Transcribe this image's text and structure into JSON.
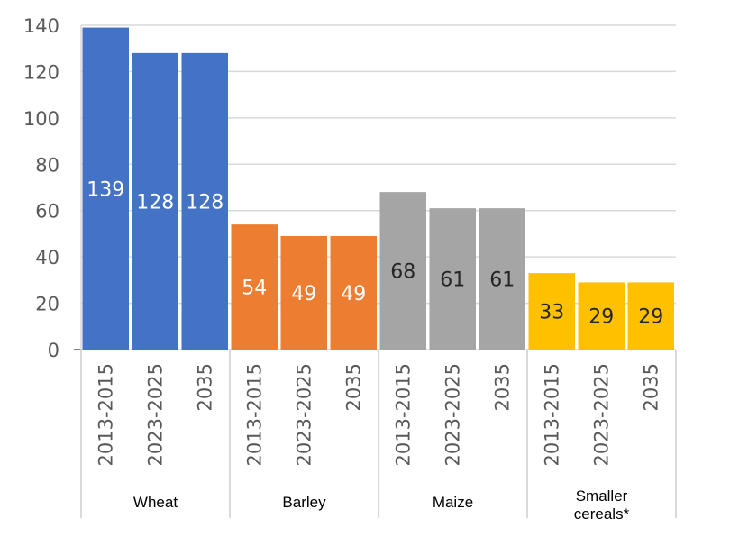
{
  "chart_data": {
    "type": "bar",
    "title": "",
    "xlabel": "",
    "ylabel": "",
    "ylim": [
      0,
      140
    ],
    "yticks": [
      0,
      20,
      40,
      60,
      80,
      100,
      120,
      140
    ],
    "grid": true,
    "legend": "none",
    "groups": [
      {
        "name": "Wheat",
        "color": "#4472C4",
        "label_color": "#FFFFFF",
        "categories": [
          "2013-2015",
          "2023-2025",
          "2035"
        ],
        "values": [
          139,
          128,
          128
        ]
      },
      {
        "name": "Barley",
        "color": "#ED7D31",
        "label_color": "#FFFFFF",
        "categories": [
          "2013-2015",
          "2023-2025",
          "2035"
        ],
        "values": [
          54,
          49,
          49
        ]
      },
      {
        "name": "Maize",
        "color": "#A5A5A5",
        "label_color": "#262626",
        "categories": [
          "2013-2015",
          "2023-2025",
          "2035"
        ],
        "values": [
          68,
          61,
          61
        ]
      },
      {
        "name": "Smaller\ncereals*",
        "color": "#FFC000",
        "label_color": "#262626",
        "categories": [
          "2013-2015",
          "2023-2025",
          "2035"
        ],
        "values": [
          33,
          29,
          29
        ]
      }
    ]
  }
}
